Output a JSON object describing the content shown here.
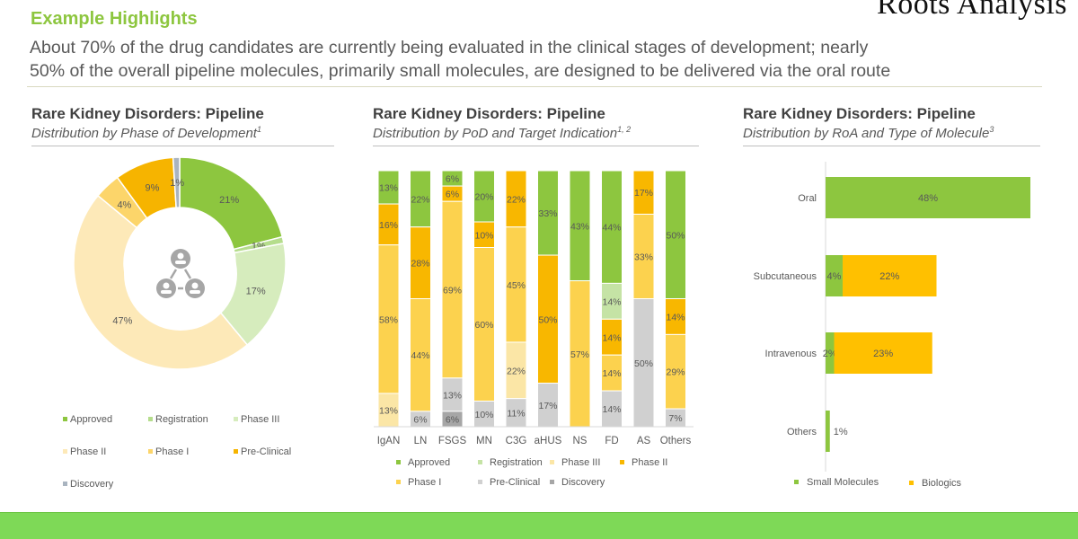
{
  "header": {
    "title": "Example Highlights",
    "summary_line1": "About 70% of the drug candidates are currently being evaluated in the clinical stages of development; nearly",
    "summary_line2": "50% of the overall pipeline molecules, primarily small molecules, are designed to be delivered via the oral route",
    "logo": "Roots Analysis"
  },
  "colors": {
    "accent": "#8dc63f",
    "Approved": "#8dc63f",
    "Registration": "#b5dd8c",
    "Phase III light-green (donut)": "#d6ecbd",
    "Phase III (bars)": "#fbe6a6",
    "Phase II": "#fde9b8",
    "Phase II (bars)": "#f8b700",
    "Phase I": "#fcd24e",
    "Pre-Clinical": "#f6b400",
    "Pre-Clinical (bars)": "#d0d0d0",
    "Discovery": "#a6a6a6",
    "Small Molecules": "#8dc63f",
    "Biologics": "#ffc000",
    "footer": "#7ed957"
  },
  "chart_data": [
    {
      "type": "pie",
      "title": "Rare Kidney Disorders: Pipeline",
      "subtitle": "Distribution by Phase of Development",
      "footnote": "1",
      "center_icon": "people-network-icon",
      "legend_position": "bottom",
      "categories": [
        "Approved",
        "Registration",
        "Phase III",
        "Phase II",
        "Phase I",
        "Pre-Clinical",
        "Discovery"
      ],
      "values": [
        21,
        1,
        17,
        47,
        4,
        9,
        1
      ],
      "slice_colors": [
        "#8dc63f",
        "#b5dd8c",
        "#d6ecbd",
        "#fde9b8",
        "#fcd56a",
        "#f6b400",
        "#a9b4c0"
      ]
    },
    {
      "type": "bar",
      "stacked": true,
      "percent": true,
      "title": "Rare Kidney Disorders: Pipeline",
      "subtitle": "Distribution by PoD and Target Indication",
      "footnote": "1, 2",
      "legend_position": "bottom",
      "legend": [
        "Approved",
        "Registration",
        "Phase III",
        "Phase II",
        "Phase I",
        "Pre-Clinical",
        "Discovery"
      ],
      "categories": [
        "IgAN",
        "LN",
        "FSGS",
        "MN",
        "C3G",
        "aHUS",
        "NS",
        "FD",
        "AS",
        "Others"
      ],
      "series": [
        {
          "name": "Approved",
          "color": "#8dc63f",
          "values": [
            13,
            22,
            6,
            20,
            0,
            33,
            43,
            44,
            0,
            50
          ]
        },
        {
          "name": "Registration",
          "color": "#c5e3a5",
          "values": [
            0,
            0,
            0,
            0,
            0,
            0,
            0,
            14,
            0,
            0
          ]
        },
        {
          "name": "Phase II",
          "color": "#f8b700",
          "values": [
            16,
            28,
            6,
            10,
            22,
            50,
            0,
            14,
            17,
            14
          ]
        },
        {
          "name": "Phase I",
          "color": "#fcd24e",
          "values": [
            58,
            44,
            69,
            60,
            45,
            0,
            57,
            14,
            33,
            29
          ]
        },
        {
          "name": "Phase III",
          "color": "#fbe6a6",
          "values": [
            13,
            0,
            0,
            0,
            22,
            0,
            0,
            0,
            0,
            0
          ]
        },
        {
          "name": "Pre-Clinical",
          "color": "#d0d0d0",
          "values": [
            0,
            6,
            13,
            10,
            11,
            17,
            0,
            14,
            50,
            7
          ]
        },
        {
          "name": "Discovery",
          "color": "#a6a6a6",
          "values": [
            0,
            0,
            6,
            0,
            0,
            0,
            0,
            0,
            0,
            0
          ]
        }
      ]
    },
    {
      "type": "bar",
      "orientation": "horizontal",
      "stacked": true,
      "title": "Rare Kidney Disorders: Pipeline",
      "subtitle": "Distribution by RoA and Type of Molecule",
      "footnote": "3",
      "legend_position": "bottom",
      "categories": [
        "Oral",
        "Subcutaneous",
        "Intravenous",
        "Others"
      ],
      "series": [
        {
          "name": "Small Molecules",
          "color": "#8dc63f",
          "values": [
            48,
            4,
            2,
            1
          ]
        },
        {
          "name": "Biologics",
          "color": "#ffc000",
          "values": [
            0,
            22,
            23,
            0
          ]
        }
      ]
    }
  ]
}
